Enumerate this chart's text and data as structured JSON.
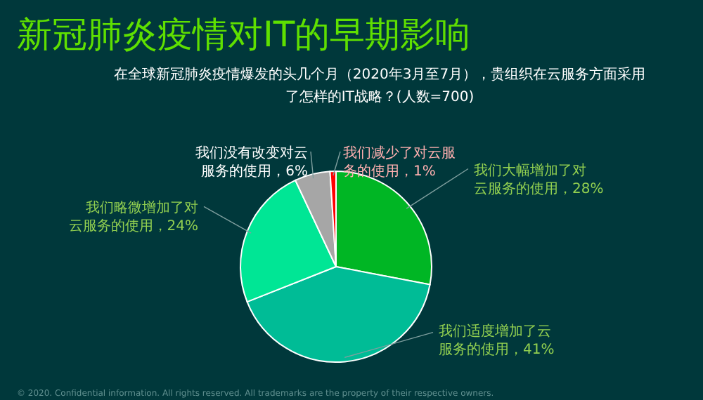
{
  "chart_data": {
    "type": "pie",
    "title": "新冠肺炎疫情对IT的早期影响",
    "subtitle": "在全球新冠肺炎疫情爆发的头几个月（2020年3月至7月），贵组织在云服务方面采用了怎样的IT战略？(人数=700)",
    "categories": [
      "我们大幅增加了对云服务的使用",
      "我们适度增加了云服务的使用",
      "我们略微增加了对云服务的使用",
      "我们没有改变对云服务的使用",
      "我们减少了对云服务的使用"
    ],
    "values": [
      28,
      41,
      24,
      6,
      1
    ],
    "value_labels": [
      "28%",
      "41%",
      "24%",
      "6%",
      "1%"
    ],
    "colors": [
      "#00b624",
      "#00bc96",
      "#00e695",
      "#a6a6a6",
      "#ff0000"
    ],
    "annotations": [
      "© 2020. Confidential information. All rights reserved. All trademarks are the property of their respective owners."
    ]
  }
}
